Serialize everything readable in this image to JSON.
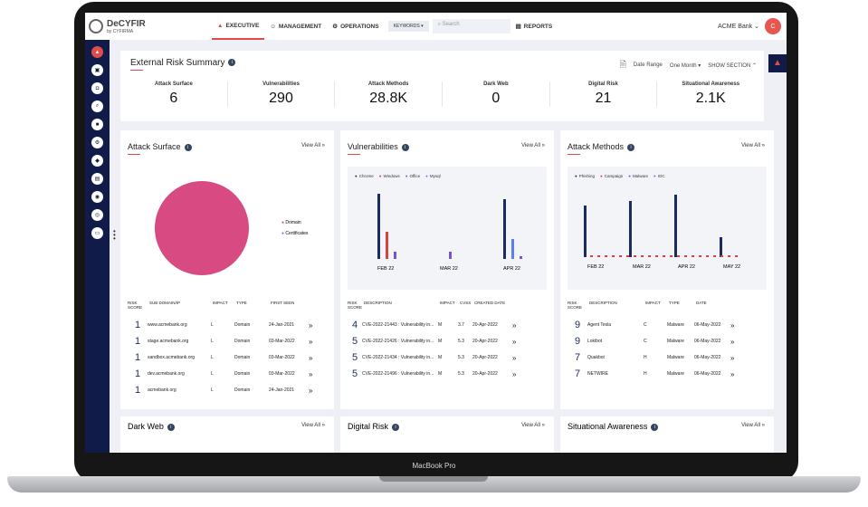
{
  "brand": {
    "name": "DeCYFIR",
    "sub": "by CYFIRMA"
  },
  "nav": [
    {
      "label": "EXECUTIVE"
    },
    {
      "label": "MANAGEMENT"
    },
    {
      "label": "OPERATIONS"
    }
  ],
  "keywords": "KEYWORDS",
  "search_placeholder": "Search",
  "reports": "REPORTS",
  "bank": "ACME Bank",
  "avatar": "C",
  "summary": {
    "title": "External Risk Summary",
    "date_label": "Date Range",
    "date_value": "One Month",
    "show_section": "SHOW SECTION",
    "metrics": [
      {
        "label": "Attack Surface",
        "value": "6"
      },
      {
        "label": "Vulnerabilities",
        "value": "290"
      },
      {
        "label": "Attack Methods",
        "value": "28.8K"
      },
      {
        "label": "Dark Web",
        "value": "0"
      },
      {
        "label": "Digital Risk",
        "value": "21"
      },
      {
        "label": "Situational Awareness",
        "value": "2.1K"
      }
    ]
  },
  "view_all": "View All",
  "attack_surface": {
    "title": "Attack Surface",
    "legend": [
      "Domain",
      "Certificates"
    ],
    "headers": [
      "RISK SCORE",
      "SUB DOMAIN/IP",
      "IMPACT",
      "TYPE",
      "FIRST SEEN"
    ],
    "rows": [
      [
        "1",
        "www.acmebank.org",
        "L",
        "Domain",
        "24-Jan-2021"
      ],
      [
        "1",
        "stage.acmebank.org",
        "L",
        "Domain",
        "03-Mar-2022"
      ],
      [
        "1",
        "sandbox.acmebank.org",
        "L",
        "Domain",
        "03-Mar-2022"
      ],
      [
        "1",
        "dev.acmebank.org",
        "L",
        "Domain",
        "03-Mar-2022"
      ],
      [
        "1",
        "acmebank.org",
        "L",
        "Domain",
        "24-Jan-2021"
      ]
    ]
  },
  "vulnerabilities": {
    "title": "Vulnerabilities",
    "legend": [
      "Chrome",
      "Windows",
      "Office",
      "Mysql"
    ],
    "x": [
      "FEB 22",
      "MAR 22",
      "APR 22"
    ],
    "headers": [
      "RISK SCORE",
      "DESCRIPTION",
      "IMPACT",
      "CVSS",
      "CREATED DATE"
    ],
    "rows": [
      [
        "4",
        "CVE-2022-21443 : Vulnerability in...",
        "M",
        "3.7",
        "20-Apr-2022"
      ],
      [
        "5",
        "CVE-2022-21426 : Vulnerability in...",
        "M",
        "5.3",
        "20-Apr-2022"
      ],
      [
        "5",
        "CVE-2022-21434 : Vulnerability in...",
        "M",
        "5.3",
        "20-Apr-2022"
      ],
      [
        "5",
        "CVE-2022-21496 : Vulnerability in...",
        "M",
        "5.3",
        "20-Apr-2022"
      ]
    ]
  },
  "attack_methods": {
    "title": "Attack Methods",
    "legend": [
      "Phishing",
      "Campaign",
      "Malware",
      "IOC"
    ],
    "x": [
      "FEB 22",
      "MAR 22",
      "APR 22",
      "MAY 22"
    ],
    "headers": [
      "RISK SCORE",
      "DESCRIPTION",
      "IMPACT",
      "TYPE",
      "DATE"
    ],
    "rows": [
      [
        "9",
        "Agent Tesla",
        "C",
        "Malware",
        "06-May-2022"
      ],
      [
        "9",
        "Lokibot",
        "C",
        "Malware",
        "06-May-2022"
      ],
      [
        "7",
        "Quakbot",
        "H",
        "Malware",
        "06-May-2022"
      ],
      [
        "7",
        "NETWIRE",
        "H",
        "Malware",
        "06-May-2022"
      ]
    ]
  },
  "bottom": [
    "Dark Web",
    "Digital Risk",
    "Situational Awareness"
  ],
  "laptop": "MacBook Pro"
}
